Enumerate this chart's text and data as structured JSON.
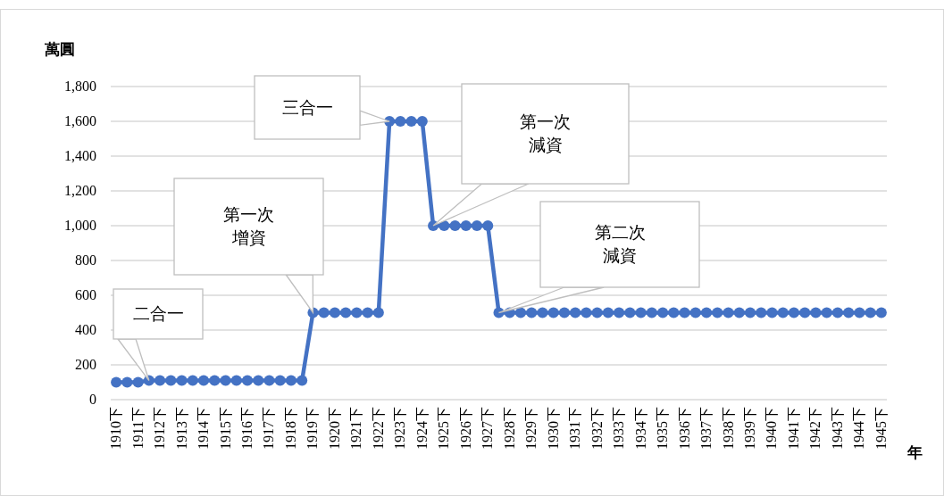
{
  "chart_data": {
    "type": "line",
    "ylabel": "萬圓",
    "xlabel": "年",
    "categories": [
      "1910下",
      null,
      "1911下",
      null,
      "1912下",
      null,
      "1913下",
      null,
      "1914下",
      null,
      "1915下",
      null,
      "1916下",
      null,
      "1917下",
      null,
      "1918下",
      null,
      "1919下",
      null,
      "1920下",
      null,
      "1921下",
      null,
      "1922下",
      null,
      "1923下",
      null,
      "1924下",
      null,
      "1925下",
      null,
      "1926下",
      null,
      "1927下",
      null,
      "1928下",
      null,
      "1929下",
      null,
      "1930下",
      null,
      "1931下",
      null,
      "1932下",
      null,
      "1933下",
      null,
      "1934下",
      null,
      "1935下",
      null,
      "1936下",
      null,
      "1937下",
      null,
      "1938下",
      null,
      "1939下",
      null,
      "1940下",
      null,
      "1941下",
      null,
      "1942下",
      null,
      "1943下",
      null,
      "1944下",
      null,
      "1945下"
    ],
    "series": [
      {
        "color": "#4472c4",
        "values": [
          100,
          100,
          100,
          110,
          110,
          110,
          110,
          110,
          110,
          110,
          110,
          110,
          110,
          110,
          110,
          110,
          110,
          110,
          500,
          500,
          500,
          500,
          500,
          500,
          500,
          1600,
          1600,
          1600,
          1600,
          1000,
          1000,
          1000,
          1000,
          1000,
          1000,
          500,
          500,
          500,
          500,
          500,
          500,
          500,
          500,
          500,
          500,
          500,
          500,
          500,
          500,
          500,
          500,
          500,
          500,
          500,
          500,
          500,
          500,
          500,
          500,
          500,
          500,
          500,
          500,
          500,
          500,
          500,
          500,
          500,
          500,
          500,
          500
        ]
      }
    ],
    "ylim": [
      0,
      1800
    ],
    "yticks": [
      {
        "value": 0,
        "label": "0"
      },
      {
        "value": 200,
        "label": "200"
      },
      {
        "value": 400,
        "label": "400"
      },
      {
        "value": 600,
        "label": "600"
      },
      {
        "value": 800,
        "label": "800"
      },
      {
        "value": 1000,
        "label": "1,000"
      },
      {
        "value": 1200,
        "label": "1,200"
      },
      {
        "value": 1400,
        "label": "1,400"
      },
      {
        "value": 1600,
        "label": "1,600"
      },
      {
        "value": 1800,
        "label": "1,800"
      }
    ],
    "grid": "y",
    "marker": "circle",
    "line_style": "solid",
    "annotations": [
      "二合一",
      "第一次增資",
      "三合一",
      "第一次減資",
      "第二次減資"
    ]
  }
}
